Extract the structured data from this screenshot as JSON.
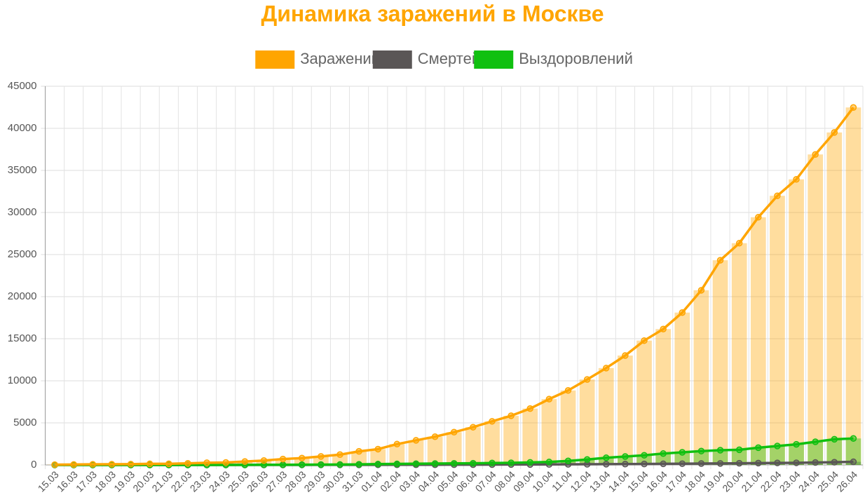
{
  "chart_data": {
    "type": "line",
    "bars": true,
    "title": "Динамика заражений в Москве",
    "categories": [
      "15.03",
      "16.03",
      "17.03",
      "18.03",
      "19.03",
      "20.03",
      "21.03",
      "22.03",
      "23.03",
      "24.03",
      "25.03",
      "26.03",
      "27.03",
      "28.03",
      "29.03",
      "30.03",
      "31.03",
      "01.04",
      "02.04",
      "03.04",
      "04.04",
      "05.04",
      "06.04",
      "07.04",
      "08.04",
      "09.04",
      "10.04",
      "11.04",
      "12.04",
      "13.04",
      "14.04",
      "15.04",
      "16.04",
      "17.04",
      "18.04",
      "19.04",
      "20.04",
      "21.04",
      "22.04",
      "23.04",
      "24.04",
      "25.04",
      "26.04"
    ],
    "series": [
      {
        "name": "Заражений",
        "color": "#ffa500",
        "values": [
          35,
          53,
          71,
          86,
          98,
          131,
          137,
          191,
          262,
          290,
          410,
          517,
          703,
          817,
          1014,
          1226,
          1613,
          1880,
          2475,
          2923,
          3357,
          3893,
          4484,
          5181,
          5841,
          6698,
          7822,
          8852,
          10158,
          11513,
          13002,
          14776,
          16146,
          18105,
          20754,
          24324,
          26350,
          29433,
          31981,
          33940,
          36897,
          39509,
          42480
        ]
      },
      {
        "name": "Смертей",
        "color": "#5a5656",
        "values": [
          0,
          0,
          0,
          0,
          0,
          0,
          0,
          0,
          0,
          0,
          1,
          2,
          3,
          5,
          7,
          8,
          9,
          15,
          17,
          20,
          24,
          29,
          31,
          42,
          50,
          54,
          61,
          72,
          82,
          95,
          105,
          113,
          131,
          150,
          170,
          180,
          200,
          222,
          239,
          254,
          287,
          320,
          370
        ]
      },
      {
        "name": "Выздоровлений",
        "color": "#10c010",
        "values": [
          0,
          0,
          0,
          0,
          0,
          0,
          0,
          0,
          0,
          5,
          10,
          16,
          26,
          32,
          41,
          48,
          70,
          100,
          120,
          150,
          170,
          190,
          200,
          230,
          250,
          300,
          350,
          480,
          650,
          850,
          1000,
          1150,
          1350,
          1500,
          1650,
          1750,
          1800,
          2050,
          2250,
          2450,
          2750,
          3050,
          3150
        ]
      }
    ],
    "ylim": [
      0,
      45000
    ],
    "yticks": [
      0,
      5000,
      10000,
      15000,
      20000,
      25000,
      30000,
      35000,
      40000,
      45000
    ],
    "grid": true,
    "legend": "top"
  }
}
